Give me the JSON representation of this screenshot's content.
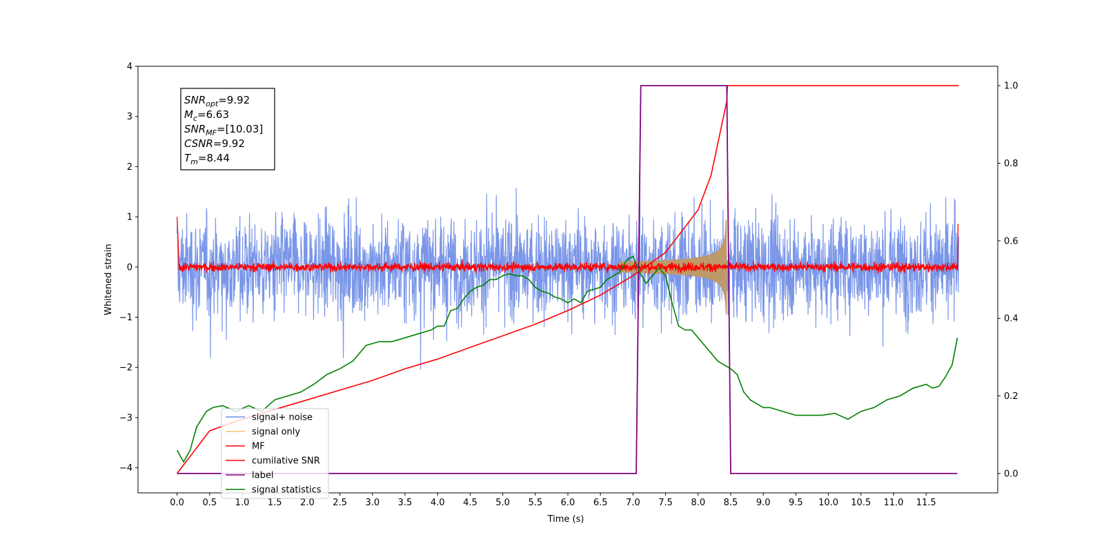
{
  "chart_data": {
    "type": "line",
    "title": "",
    "xlabel": "Time (s)",
    "ylabel": "Whitened strain",
    "xlim": [
      -0.6,
      12.6
    ],
    "ylim": [
      -4.5,
      4
    ],
    "y2lim": [
      -0.05,
      1.05
    ],
    "xticks": [
      "0.0",
      "0.5",
      "1.0",
      "1.5",
      "2.0",
      "2.5",
      "3.0",
      "3.5",
      "4.0",
      "4.5",
      "5.0",
      "5.5",
      "6.0",
      "6.5",
      "7.0",
      "7.5",
      "8.0",
      "8.5",
      "9.0",
      "9.5",
      "10.0",
      "10.5",
      "11.0",
      "11.5"
    ],
    "yticks": [
      "4",
      "3",
      "2",
      "1",
      "0",
      "−1",
      "−2",
      "−3",
      "−4"
    ],
    "y2ticks": [
      "1.0",
      "0.8",
      "0.6",
      "0.4",
      "0.2",
      "0.0"
    ],
    "grid": false,
    "legend_position": "lower-left",
    "annotation": {
      "lines": [
        {
          "sym": "SNR",
          "sub": "opt",
          "val": "=9.92"
        },
        {
          "sym": "M",
          "sub": "c",
          "val": "=6.63"
        },
        {
          "sym": "SNR",
          "sub": "MF",
          "val": "=[10.03]"
        },
        {
          "sym": "CSNR",
          "sub": "",
          "val": "=9.92"
        },
        {
          "sym": "T",
          "sub": "m",
          "val": "=8.44"
        }
      ]
    },
    "series": [
      {
        "name": "signal+ noise",
        "color": "#6f8de6",
        "axis": "left",
        "kind": "noise",
        "amplitude": 1.5,
        "x_range": [
          0.0,
          12.0
        ]
      },
      {
        "name": "signal only",
        "color": "#f5c66b",
        "axis": "left",
        "kind": "chirp",
        "x_range": [
          6.8,
          8.44
        ],
        "peak": 0.95,
        "merger": 8.44
      },
      {
        "name": "MF",
        "color": "#ff0000",
        "axis": "left",
        "kind": "noise",
        "amplitude": 0.2,
        "x_range": [
          0.0,
          12.0
        ]
      },
      {
        "name": "cumilative SNR",
        "color": "#ff0000",
        "axis": "right",
        "x": [
          0.0,
          0.5,
          1.0,
          1.5,
          2.0,
          2.5,
          3.0,
          3.5,
          4.0,
          4.5,
          5.0,
          5.5,
          6.0,
          6.5,
          7.0,
          7.5,
          8.0,
          8.2,
          8.44,
          8.45,
          12.0
        ],
        "values": [
          0.0,
          0.11,
          0.14,
          0.165,
          0.19,
          0.215,
          0.24,
          0.27,
          0.295,
          0.325,
          0.355,
          0.385,
          0.42,
          0.46,
          0.51,
          0.57,
          0.68,
          0.77,
          0.96,
          1.0,
          1.0
        ]
      },
      {
        "name": "label",
        "color": "#800080",
        "axis": "right",
        "x": [
          0.0,
          7.05,
          7.12,
          8.44,
          8.5,
          11.98
        ],
        "values": [
          0.0,
          0.0,
          1.0,
          1.0,
          0.0,
          0.0
        ]
      },
      {
        "name": "signal statistics",
        "color": "#008000",
        "axis": "right",
        "x": [
          0.0,
          0.1,
          0.2,
          0.3,
          0.45,
          0.55,
          0.7,
          0.9,
          1.1,
          1.3,
          1.5,
          1.7,
          1.9,
          2.1,
          2.3,
          2.5,
          2.7,
          2.9,
          3.1,
          3.3,
          3.5,
          3.7,
          3.9,
          4.0,
          4.1,
          4.2,
          4.3,
          4.4,
          4.5,
          4.6,
          4.7,
          4.8,
          4.9,
          5.0,
          5.1,
          5.2,
          5.3,
          5.4,
          5.5,
          5.6,
          5.7,
          5.8,
          5.9,
          6.0,
          6.1,
          6.2,
          6.3,
          6.4,
          6.5,
          6.6,
          6.7,
          6.8,
          6.9,
          7.0,
          7.1,
          7.2,
          7.3,
          7.4,
          7.5,
          7.6,
          7.7,
          7.8,
          7.9,
          8.0,
          8.1,
          8.2,
          8.3,
          8.4,
          8.5,
          8.6,
          8.7,
          8.8,
          8.9,
          9.0,
          9.1,
          9.3,
          9.5,
          9.7,
          9.9,
          10.1,
          10.3,
          10.5,
          10.7,
          10.9,
          11.1,
          11.3,
          11.5,
          11.6,
          11.7,
          11.8,
          11.9,
          11.98
        ],
        "values": [
          0.06,
          0.03,
          0.06,
          0.12,
          0.16,
          0.17,
          0.175,
          0.16,
          0.175,
          0.16,
          0.19,
          0.2,
          0.21,
          0.23,
          0.255,
          0.27,
          0.29,
          0.33,
          0.34,
          0.34,
          0.35,
          0.36,
          0.37,
          0.38,
          0.38,
          0.42,
          0.425,
          0.45,
          0.47,
          0.48,
          0.485,
          0.5,
          0.5,
          0.51,
          0.515,
          0.51,
          0.51,
          0.5,
          0.48,
          0.47,
          0.465,
          0.455,
          0.45,
          0.44,
          0.45,
          0.44,
          0.47,
          0.475,
          0.48,
          0.5,
          0.51,
          0.52,
          0.55,
          0.56,
          0.52,
          0.49,
          0.51,
          0.53,
          0.51,
          0.44,
          0.38,
          0.37,
          0.37,
          0.35,
          0.33,
          0.31,
          0.29,
          0.28,
          0.27,
          0.255,
          0.21,
          0.19,
          0.18,
          0.17,
          0.17,
          0.16,
          0.15,
          0.15,
          0.15,
          0.155,
          0.14,
          0.16,
          0.17,
          0.19,
          0.2,
          0.22,
          0.23,
          0.22,
          0.225,
          0.25,
          0.28,
          0.35
        ]
      }
    ]
  }
}
